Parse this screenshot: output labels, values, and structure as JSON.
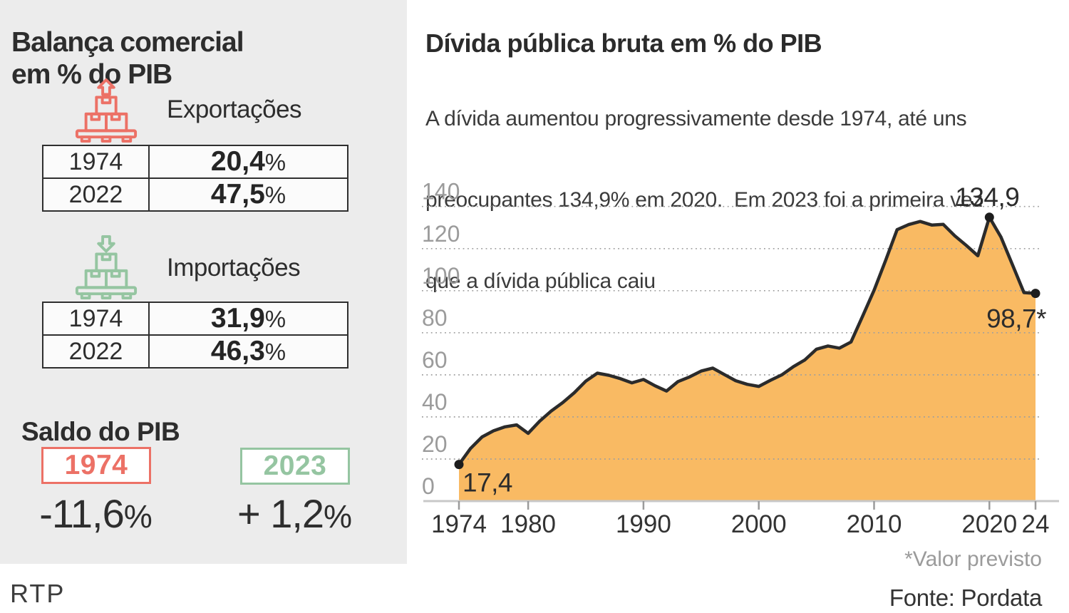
{
  "left_panel": {
    "title_line1": "Balança comercial",
    "title_line2": "em % do PIB",
    "exports": {
      "label": "Exportações",
      "icon": "pallet-boxes-up-arrow",
      "accent_color": "#EC7166",
      "rows": [
        {
          "year": "1974",
          "value": "20,4",
          "unit": "%"
        },
        {
          "year": "2022",
          "value": "47,5",
          "unit": "%"
        }
      ]
    },
    "imports": {
      "label": "Importações",
      "icon": "pallet-boxes-down-arrow",
      "accent_color": "#95C5A1",
      "rows": [
        {
          "year": "1974",
          "value": "31,9",
          "unit": "%"
        },
        {
          "year": "2022",
          "value": "46,3",
          "unit": "%"
        }
      ]
    },
    "saldo": {
      "heading": "Saldo do PIB",
      "items": [
        {
          "year": "1974",
          "value": "-11,6",
          "unit": "%",
          "accent_color": "#EC7166"
        },
        {
          "year": "2023",
          "value": "+ 1,2",
          "unit": "%",
          "accent_color": "#95C5A1"
        }
      ]
    }
  },
  "right_panel": {
    "title": "Dívida pública bruta em % do PIB",
    "subtitle_line1": "A dívida aumentou progressivamente desde 1974, até uns",
    "subtitle_line2": "preocupantes 134,9% em 2020.  Em 2023 foi a primeira vez",
    "subtitle_line3": "que a dívida pública caiu"
  },
  "footer": {
    "brand": "RTP",
    "footnote": "*Valor previsto",
    "source": "Fonte: Pordata"
  },
  "chart_data": {
    "type": "area",
    "title": "Dívida pública bruta em % do PIB",
    "ylabel": "% do PIB",
    "ylim": [
      0,
      140
    ],
    "grid": "horizontal-dotted",
    "legend": "none",
    "area_color": "#F9BA63",
    "line_color": "#2B2B2B",
    "x": [
      1974,
      1975,
      1976,
      1977,
      1978,
      1979,
      1980,
      1981,
      1982,
      1983,
      1984,
      1985,
      1986,
      1987,
      1988,
      1989,
      1990,
      1991,
      1992,
      1993,
      1994,
      1995,
      1996,
      1997,
      1998,
      1999,
      2000,
      2001,
      2002,
      2003,
      2004,
      2005,
      2006,
      2007,
      2008,
      2009,
      2010,
      2011,
      2012,
      2013,
      2014,
      2015,
      2016,
      2017,
      2018,
      2019,
      2020,
      2021,
      2022,
      2023,
      2024
    ],
    "values": [
      17.4,
      25.0,
      30.5,
      33.4,
      35.3,
      36.2,
      32.2,
      38.0,
      42.8,
      46.8,
      51.5,
      57.0,
      60.8,
      59.8,
      58.2,
      56.2,
      57.8,
      54.8,
      52.3,
      56.8,
      59.0,
      61.8,
      63.2,
      60.2,
      57.2,
      55.5,
      54.5,
      57.4,
      60.0,
      63.9,
      67.1,
      72.2,
      73.7,
      72.7,
      75.6,
      87.8,
      100.2,
      114.4,
      129.0,
      131.4,
      132.9,
      131.2,
      131.5,
      126.1,
      121.5,
      116.6,
      134.9,
      125.5,
      112.4,
      99.1,
      98.7
    ],
    "y_ticks": [
      0,
      20,
      40,
      60,
      80,
      100,
      120,
      140
    ],
    "x_ticks": [
      {
        "year": 1974,
        "label": "1974"
      },
      {
        "year": 1980,
        "label": "1980"
      },
      {
        "year": 1990,
        "label": "1990"
      },
      {
        "year": 2000,
        "label": "2000"
      },
      {
        "year": 2010,
        "label": "2010"
      },
      {
        "year": 2020,
        "label": "2020"
      },
      {
        "year": 2024,
        "label": "24"
      }
    ],
    "annotations": [
      {
        "year": 1974,
        "value": 17.4,
        "text": "17,4",
        "position": "below-right"
      },
      {
        "year": 2020,
        "value": 134.9,
        "text": "134,9",
        "position": "above"
      },
      {
        "year": 2024,
        "value": 98.7,
        "text": "98,7*",
        "position": "below-left"
      }
    ]
  }
}
